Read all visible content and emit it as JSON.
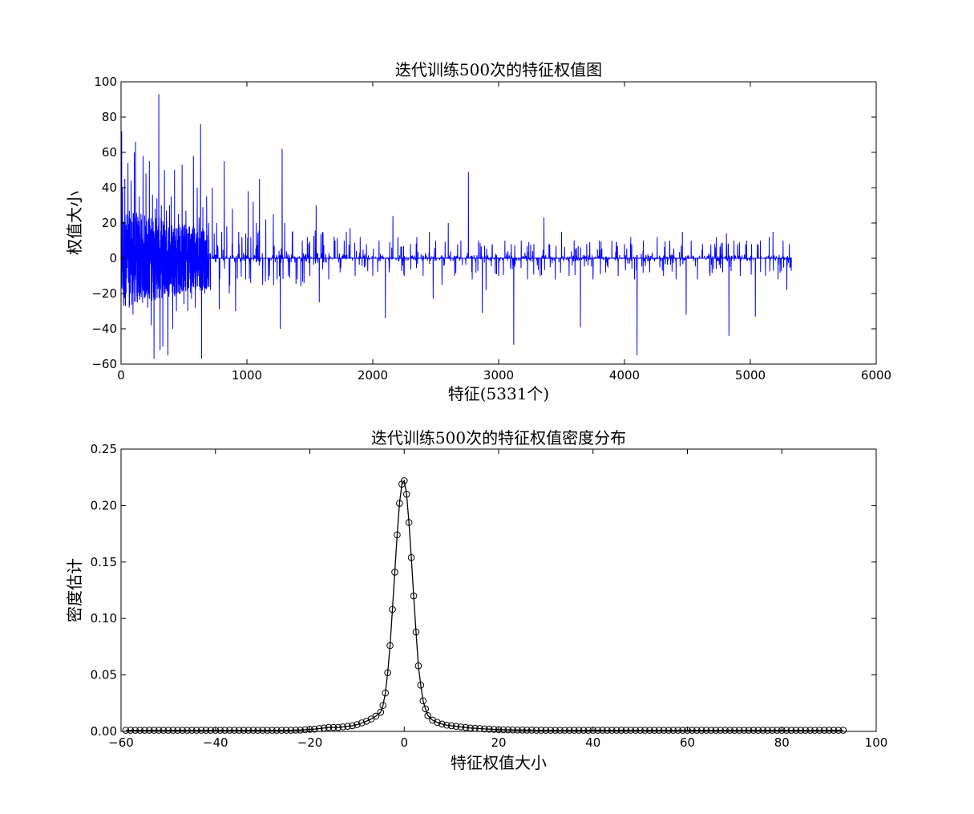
{
  "chart_data": [
    {
      "type": "line",
      "title": "迭代训练500次的特征权值图",
      "xlabel": "特征(5331个)",
      "ylabel": "权值大小",
      "xlim": [
        0,
        6000
      ],
      "ylim": [
        -60,
        100
      ],
      "xticks": [
        0,
        1000,
        2000,
        3000,
        4000,
        5000,
        6000
      ],
      "yticks": [
        -60,
        -40,
        -20,
        0,
        20,
        40,
        60,
        80,
        100
      ],
      "grid": false,
      "line_color": "#0000ff",
      "n_points": 5331,
      "spikes": [
        [
          5,
          72
        ],
        [
          12,
          40
        ],
        [
          20,
          -27
        ],
        [
          30,
          45
        ],
        [
          40,
          -20
        ],
        [
          55,
          54
        ],
        [
          65,
          -28
        ],
        [
          80,
          44
        ],
        [
          95,
          -32
        ],
        [
          105,
          60
        ],
        [
          115,
          66
        ],
        [
          130,
          -25
        ],
        [
          145,
          35
        ],
        [
          160,
          -22
        ],
        [
          175,
          58
        ],
        [
          185,
          -20
        ],
        [
          198,
          48
        ],
        [
          212,
          -28
        ],
        [
          225,
          55
        ],
        [
          240,
          -38
        ],
        [
          250,
          36
        ],
        [
          262,
          -57
        ],
        [
          272,
          28
        ],
        [
          285,
          34
        ],
        [
          300,
          93
        ],
        [
          310,
          -52
        ],
        [
          320,
          30
        ],
        [
          332,
          -50
        ],
        [
          345,
          50
        ],
        [
          360,
          27
        ],
        [
          372,
          -55
        ],
        [
          385,
          30
        ],
        [
          398,
          35
        ],
        [
          410,
          -40
        ],
        [
          425,
          50
        ],
        [
          440,
          -30
        ],
        [
          455,
          25
        ],
        [
          470,
          -20
        ],
        [
          485,
          53
        ],
        [
          500,
          -26
        ],
        [
          515,
          27
        ],
        [
          530,
          -30
        ],
        [
          545,
          18
        ],
        [
          560,
          -23
        ],
        [
          575,
          58
        ],
        [
          590,
          -28
        ],
        [
          605,
          40
        ],
        [
          620,
          23
        ],
        [
          632,
          76
        ],
        [
          640,
          -57
        ],
        [
          650,
          29
        ],
        [
          665,
          -20
        ],
        [
          680,
          35
        ],
        [
          695,
          20
        ],
        [
          710,
          -18
        ],
        [
          725,
          40
        ],
        [
          740,
          14
        ],
        [
          760,
          20
        ],
        [
          780,
          -29
        ],
        [
          800,
          15
        ],
        [
          820,
          55
        ],
        [
          840,
          18
        ],
        [
          860,
          -20
        ],
        [
          885,
          28
        ],
        [
          910,
          -30
        ],
        [
          935,
          15
        ],
        [
          960,
          12
        ],
        [
          990,
          -12
        ],
        [
          1010,
          38
        ],
        [
          1030,
          -14
        ],
        [
          1050,
          32
        ],
        [
          1075,
          20
        ],
        [
          1100,
          45
        ],
        [
          1125,
          -15
        ],
        [
          1150,
          22
        ],
        [
          1180,
          -10
        ],
        [
          1210,
          25
        ],
        [
          1240,
          -12
        ],
        [
          1265,
          -40
        ],
        [
          1280,
          62
        ],
        [
          1300,
          20
        ],
        [
          1330,
          -10
        ],
        [
          1360,
          15
        ],
        [
          1400,
          -12
        ],
        [
          1440,
          10
        ],
        [
          1480,
          12
        ],
        [
          1500,
          -10
        ],
        [
          1550,
          30
        ],
        [
          1575,
          -25
        ],
        [
          1600,
          15
        ],
        [
          1650,
          -12
        ],
        [
          1700,
          10
        ],
        [
          1740,
          -8
        ],
        [
          1790,
          15
        ],
        [
          1820,
          17
        ],
        [
          1860,
          -10
        ],
        [
          1900,
          12
        ],
        [
          1950,
          8
        ],
        [
          2000,
          -10
        ],
        [
          2050,
          10
        ],
        [
          2100,
          -34
        ],
        [
          2130,
          -8
        ],
        [
          2160,
          24
        ],
        [
          2200,
          12
        ],
        [
          2250,
          -10
        ],
        [
          2300,
          8
        ],
        [
          2350,
          12
        ],
        [
          2400,
          -10
        ],
        [
          2450,
          15
        ],
        [
          2480,
          -23
        ],
        [
          2500,
          10
        ],
        [
          2550,
          -15
        ],
        [
          2600,
          20
        ],
        [
          2650,
          -10
        ],
        [
          2700,
          10
        ],
        [
          2760,
          49
        ],
        [
          2790,
          -12
        ],
        [
          2840,
          10
        ],
        [
          2870,
          -31
        ],
        [
          2900,
          -18
        ],
        [
          2950,
          8
        ],
        [
          3000,
          -10
        ],
        [
          3050,
          10
        ],
        [
          3100,
          8
        ],
        [
          3120,
          -49
        ],
        [
          3180,
          10
        ],
        [
          3230,
          -12
        ],
        [
          3280,
          8
        ],
        [
          3330,
          -10
        ],
        [
          3360,
          23
        ],
        [
          3400,
          8
        ],
        [
          3450,
          -12
        ],
        [
          3500,
          15
        ],
        [
          3560,
          -10
        ],
        [
          3600,
          10
        ],
        [
          3650,
          -39
        ],
        [
          3700,
          8
        ],
        [
          3750,
          -12
        ],
        [
          3800,
          10
        ],
        [
          3850,
          -8
        ],
        [
          3900,
          10
        ],
        [
          3950,
          -10
        ],
        [
          4000,
          8
        ],
        [
          4050,
          12
        ],
        [
          4080,
          -12
        ],
        [
          4100,
          -55
        ],
        [
          4150,
          10
        ],
        [
          4200,
          -8
        ],
        [
          4260,
          12
        ],
        [
          4310,
          -10
        ],
        [
          4360,
          10
        ],
        [
          4410,
          -12
        ],
        [
          4460,
          15
        ],
        [
          4490,
          -32
        ],
        [
          4530,
          10
        ],
        [
          4580,
          -12
        ],
        [
          4620,
          8
        ],
        [
          4680,
          -10
        ],
        [
          4730,
          12
        ],
        [
          4780,
          -8
        ],
        [
          4810,
          14
        ],
        [
          4830,
          -44
        ],
        [
          4870,
          10
        ],
        [
          4920,
          -10
        ],
        [
          4970,
          10
        ],
        [
          5010,
          8
        ],
        [
          5040,
          -33
        ],
        [
          5080,
          10
        ],
        [
          5120,
          -10
        ],
        [
          5150,
          12
        ],
        [
          5180,
          15
        ],
        [
          5220,
          -12
        ],
        [
          5260,
          10
        ],
        [
          5290,
          -18
        ],
        [
          5310,
          8
        ],
        [
          5331,
          0
        ]
      ]
    },
    {
      "type": "line",
      "title": "迭代训练500次的特征权值密度分布",
      "xlabel": "特征权值大小",
      "ylabel": "密度估计",
      "xlim": [
        -60,
        100
      ],
      "ylim": [
        0,
        0.25
      ],
      "xticks": [
        -60,
        -40,
        -20,
        0,
        20,
        40,
        60,
        80,
        100
      ],
      "yticks": [
        "0.00",
        "0.05",
        "0.10",
        "0.15",
        "0.20",
        "0.25"
      ],
      "grid": false,
      "line_color": "#000000",
      "marker": "circle-open",
      "x": [
        -59,
        -58,
        -57,
        -56,
        -55,
        -54,
        -53,
        -52,
        -51,
        -50,
        -49,
        -48,
        -47,
        -46,
        -45,
        -44,
        -43,
        -42,
        -41,
        -40,
        -39,
        -38,
        -37,
        -36,
        -35,
        -34,
        -33,
        -32,
        -31,
        -30,
        -29,
        -28,
        -27,
        -26,
        -25,
        -24,
        -23,
        -22,
        -21,
        -20,
        -19,
        -18,
        -17,
        -16,
        -15,
        -14,
        -13,
        -12,
        -11,
        -10,
        -9,
        -8,
        -7,
        -6,
        -5,
        -4.5,
        -4,
        -3.5,
        -3,
        -2.5,
        -2,
        -1.5,
        -1,
        -0.5,
        0,
        0.5,
        1,
        1.5,
        2,
        2.5,
        3,
        3.5,
        4,
        4.5,
        5,
        6,
        7,
        8,
        9,
        10,
        11,
        12,
        13,
        14,
        15,
        16,
        17,
        18,
        19,
        20,
        21,
        22,
        23,
        24,
        25,
        26,
        27,
        28,
        29,
        30,
        31,
        32,
        33,
        34,
        35,
        36,
        37,
        38,
        39,
        40,
        41,
        42,
        43,
        44,
        45,
        46,
        47,
        48,
        49,
        50,
        51,
        52,
        53,
        54,
        55,
        56,
        57,
        58,
        59,
        60,
        61,
        62,
        63,
        64,
        65,
        66,
        67,
        68,
        69,
        70,
        71,
        72,
        73,
        74,
        75,
        76,
        77,
        78,
        79,
        80,
        81,
        82,
        83,
        84,
        85,
        86,
        87,
        88,
        89,
        90,
        91,
        92,
        93
      ],
      "y": [
        0.001,
        0.001,
        0.001,
        0.001,
        0.001,
        0.001,
        0.001,
        0.001,
        0.001,
        0.001,
        0.001,
        0.001,
        0.001,
        0.001,
        0.001,
        0.001,
        0.001,
        0.001,
        0.001,
        0.001,
        0.001,
        0.001,
        0.001,
        0.001,
        0.001,
        0.001,
        0.001,
        0.001,
        0.001,
        0.001,
        0.001,
        0.001,
        0.001,
        0.001,
        0.001,
        0.001,
        0.0012,
        0.0012,
        0.0015,
        0.0018,
        0.002,
        0.0025,
        0.003,
        0.0035,
        0.0035,
        0.0035,
        0.004,
        0.0045,
        0.005,
        0.006,
        0.0075,
        0.009,
        0.011,
        0.0135,
        0.017,
        0.023,
        0.034,
        0.052,
        0.076,
        0.108,
        0.141,
        0.174,
        0.202,
        0.219,
        0.222,
        0.21,
        0.185,
        0.154,
        0.12,
        0.088,
        0.058,
        0.041,
        0.027,
        0.02,
        0.014,
        0.01,
        0.008,
        0.0065,
        0.0055,
        0.005,
        0.0045,
        0.004,
        0.0035,
        0.003,
        0.0028,
        0.0025,
        0.0022,
        0.002,
        0.0018,
        0.0016,
        0.0015,
        0.0014,
        0.0013,
        0.0012,
        0.0012,
        0.0011,
        0.0011,
        0.001,
        0.001,
        0.001,
        0.001,
        0.001,
        0.001,
        0.001,
        0.001,
        0.001,
        0.001,
        0.001,
        0.001,
        0.001,
        0.001,
        0.001,
        0.001,
        0.001,
        0.001,
        0.001,
        0.001,
        0.001,
        0.001,
        0.001,
        0.001,
        0.001,
        0.001,
        0.001,
        0.001,
        0.001,
        0.001,
        0.001,
        0.001,
        0.001,
        0.001,
        0.001,
        0.001,
        0.001,
        0.001,
        0.001,
        0.001,
        0.001,
        0.001,
        0.001,
        0.001,
        0.001,
        0.001,
        0.001,
        0.001,
        0.001,
        0.001,
        0.001,
        0.001,
        0.001,
        0.001,
        0.001,
        0.001,
        0.001,
        0.001,
        0.001,
        0.001,
        0.001,
        0.001,
        0.001,
        0.001,
        0.001,
        0.001
      ]
    }
  ]
}
